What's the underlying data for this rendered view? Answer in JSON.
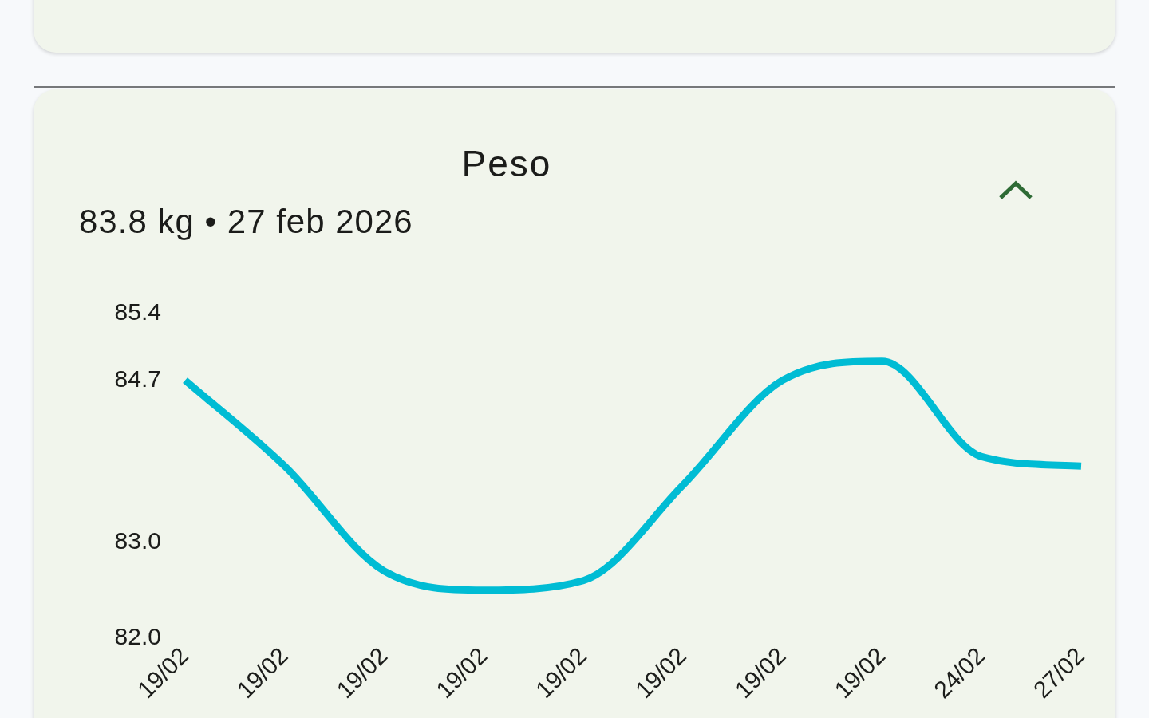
{
  "chart_data": {
    "type": "line",
    "title": "Peso",
    "subtitle": "83.8 kg • 27 feb 2026",
    "categories": [
      "19/02",
      "19/02",
      "19/02",
      "19/02",
      "19/02",
      "19/02",
      "19/02",
      "19/02",
      "24/02",
      "27/02"
    ],
    "series": [
      {
        "color": "#00bcd4",
        "values": [
          84.7,
          83.8,
          82.7,
          82.5,
          82.6,
          83.6,
          84.7,
          84.9,
          83.9,
          83.8
        ]
      }
    ],
    "ylim": [
      82.0,
      85.4
    ],
    "yticks": [
      {
        "value": 82.0,
        "label": "82.0"
      },
      {
        "value": 83.0,
        "label": "83.0"
      },
      84.7,
      85.4
    ]
  }
}
